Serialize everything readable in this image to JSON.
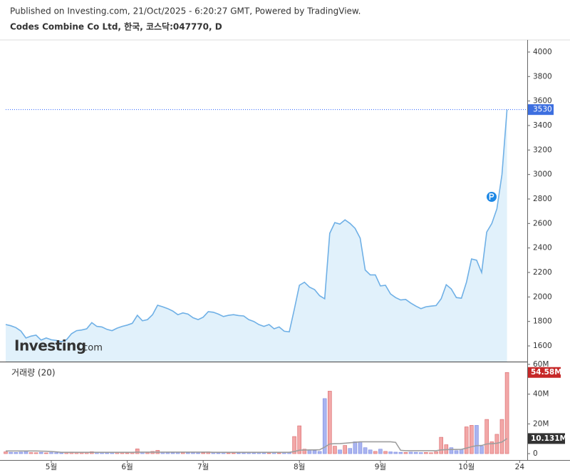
{
  "chart_data": [
    {
      "type": "area",
      "subtitle": "Published on Investing.com, 21/Oct/2025 - 6:20:27 GMT, Powered by TradingView.",
      "title": "Codes Combine Co Ltd, 한국, 코스닥:047770, D",
      "watermark": {
        "brand": "Investing",
        "suffix": ".com"
      },
      "color": "#6fb0e6",
      "fill": "#e1f1fb",
      "x": [
        0,
        1,
        2,
        3,
        4,
        5,
        6,
        7,
        8,
        9,
        10,
        11,
        12,
        13,
        14,
        15,
        16,
        17,
        18,
        19,
        20,
        21,
        22,
        23,
        24,
        25,
        26,
        27,
        28,
        29,
        30,
        31,
        32,
        33,
        34,
        35,
        36,
        37,
        38,
        39,
        40,
        41,
        42,
        43,
        44,
        45,
        46,
        47,
        48,
        49,
        50,
        51,
        52,
        53,
        54,
        55,
        56,
        57,
        58,
        59,
        60,
        61,
        62,
        63,
        64,
        65,
        66,
        67,
        68,
        69,
        70,
        71,
        72,
        73,
        74,
        75,
        76,
        77,
        78,
        79,
        80,
        81,
        82,
        83,
        84,
        85,
        86,
        87,
        88,
        89,
        90,
        91,
        92,
        93,
        94,
        95,
        96,
        97,
        98,
        99
      ],
      "values": [
        1775,
        1765,
        1750,
        1722,
        1665,
        1680,
        1688,
        1648,
        1665,
        1650,
        1645,
        1635,
        1650,
        1700,
        1725,
        1730,
        1740,
        1790,
        1760,
        1755,
        1735,
        1725,
        1745,
        1760,
        1770,
        1785,
        1850,
        1805,
        1815,
        1855,
        1932,
        1920,
        1905,
        1885,
        1855,
        1870,
        1860,
        1830,
        1815,
        1835,
        1880,
        1875,
        1860,
        1840,
        1850,
        1855,
        1848,
        1845,
        1815,
        1800,
        1775,
        1760,
        1775,
        1740,
        1755,
        1720,
        1715,
        1900,
        2095,
        2120,
        2080,
        2060,
        2010,
        1985,
        2520,
        2607,
        2595,
        2630,
        2600,
        2560,
        2480,
        2220,
        2180,
        2180,
        2090,
        2095,
        2025,
        1995,
        1975,
        1980,
        1950,
        1925,
        1905,
        1920,
        1925,
        1930,
        1985,
        2100,
        2065,
        1995,
        1990,
        2120,
        2310,
        2300,
        2200,
        2530,
        2600,
        2720,
        3000,
        3530
      ],
      "xlim": [
        0,
        103
      ],
      "ylim": [
        1472,
        4093
      ],
      "yticks": [
        1600,
        1800,
        2000,
        2200,
        2400,
        2600,
        2800,
        3000,
        3200,
        3400,
        3600,
        3800,
        4000
      ]
    },
    {
      "type": "bar",
      "title": "거래량 (20)",
      "up_color": "#f2a7a7",
      "down_color": "#a9b4f0",
      "ma_color": "#9e9e9e",
      "x": [
        0,
        1,
        2,
        3,
        4,
        5,
        6,
        7,
        8,
        9,
        10,
        11,
        12,
        13,
        14,
        15,
        16,
        17,
        18,
        19,
        20,
        21,
        22,
        23,
        24,
        25,
        26,
        27,
        28,
        29,
        30,
        31,
        32,
        33,
        34,
        35,
        36,
        37,
        38,
        39,
        40,
        41,
        42,
        43,
        44,
        45,
        46,
        47,
        48,
        49,
        50,
        51,
        52,
        53,
        54,
        55,
        56,
        57,
        58,
        59,
        60,
        61,
        62,
        63,
        64,
        65,
        66,
        67,
        68,
        69,
        70,
        71,
        72,
        73,
        74,
        75,
        76,
        77,
        78,
        79,
        80,
        81,
        82,
        83,
        84,
        85,
        86,
        87,
        88,
        89,
        90,
        91,
        92,
        93,
        94,
        95,
        96,
        97,
        98,
        99
      ],
      "values": [
        1200000,
        900000,
        800000,
        1000000,
        1500000,
        700000,
        600000,
        900000,
        500000,
        700000,
        600000,
        500000,
        700000,
        1100000,
        900000,
        600000,
        700000,
        1300000,
        800000,
        600000,
        500000,
        600000,
        700000,
        600000,
        500000,
        800000,
        3200000,
        1000000,
        800000,
        1500000,
        2200000,
        900000,
        700000,
        600000,
        800000,
        700000,
        600000,
        700000,
        500000,
        600000,
        1200000,
        600000,
        500000,
        600000,
        500000,
        500000,
        400000,
        500000,
        600000,
        500000,
        600000,
        500000,
        500000,
        600000,
        500000,
        600000,
        700000,
        11500000,
        18700000,
        3000000,
        2500000,
        2000000,
        1500000,
        37000000,
        42000000,
        5000000,
        2500000,
        5500000,
        3500000,
        8000000,
        8000000,
        4000000,
        2500000,
        1500000,
        3000000,
        1500000,
        1200000,
        1000000,
        900000,
        800000,
        1000000,
        900000,
        700000,
        800000,
        600000,
        1200000,
        11000000,
        6000000,
        4000000,
        2000000,
        3000000,
        18000000,
        19000000,
        19000000,
        5000000,
        23000000,
        8000000,
        13000000,
        23000000,
        54580000
      ],
      "value_labels": {
        "99": "54.58M"
      },
      "ma_values": [
        1800000,
        1800000,
        1800000,
        1800000,
        1800000,
        1800000,
        1800000,
        1700000,
        1600000,
        1400000,
        1200000,
        900000,
        900000,
        900000,
        900000,
        900000,
        900000,
        900000,
        900000,
        900000,
        900000,
        900000,
        900000,
        900000,
        900000,
        900000,
        1000000,
        1000000,
        1000000,
        1000000,
        1000000,
        1000000,
        1000000,
        1000000,
        1000000,
        1000000,
        1000000,
        1000000,
        1000000,
        1000000,
        1000000,
        900000,
        900000,
        900000,
        900000,
        900000,
        900000,
        900000,
        900000,
        900000,
        900000,
        900000,
        900000,
        900000,
        900000,
        900000,
        900000,
        1400000,
        2300000,
        2400000,
        2500000,
        2500000,
        2600000,
        4400000,
        6500000,
        6700000,
        6800000,
        7000000,
        7300000,
        7600000,
        8000000,
        8000000,
        8000000,
        8000000,
        8000000,
        8000000,
        8000000,
        7600000,
        2200000,
        2000000,
        2000000,
        2000000,
        2000000,
        2000000,
        2000000,
        2000000,
        2500000,
        2700000,
        2800000,
        2800000,
        2900000,
        3700000,
        4600000,
        5400000,
        5500000,
        6500000,
        6700000,
        7000000,
        7800000,
        10131000
      ],
      "ma_value_labels": {
        "99": "10.131M"
      },
      "xlim": [
        0,
        103
      ],
      "ylim": [
        -4300000,
        61400000
      ],
      "yticks": [
        0,
        {
          "value": 20000000,
          "label": "20M"
        },
        {
          "value": 40000000,
          "label": "40M"
        },
        {
          "value": 60000000,
          "label": "60M"
        }
      ],
      "xticks": [
        {
          "value": 9,
          "label": "5월"
        },
        {
          "value": 24,
          "label": "6월"
        },
        {
          "value": 39,
          "label": "7월"
        },
        {
          "value": 58,
          "label": "8월"
        },
        {
          "value": 74,
          "label": "9월"
        },
        {
          "value": 91,
          "label": "10월"
        },
        {
          "value": 101.5,
          "label": "24"
        }
      ]
    }
  ]
}
